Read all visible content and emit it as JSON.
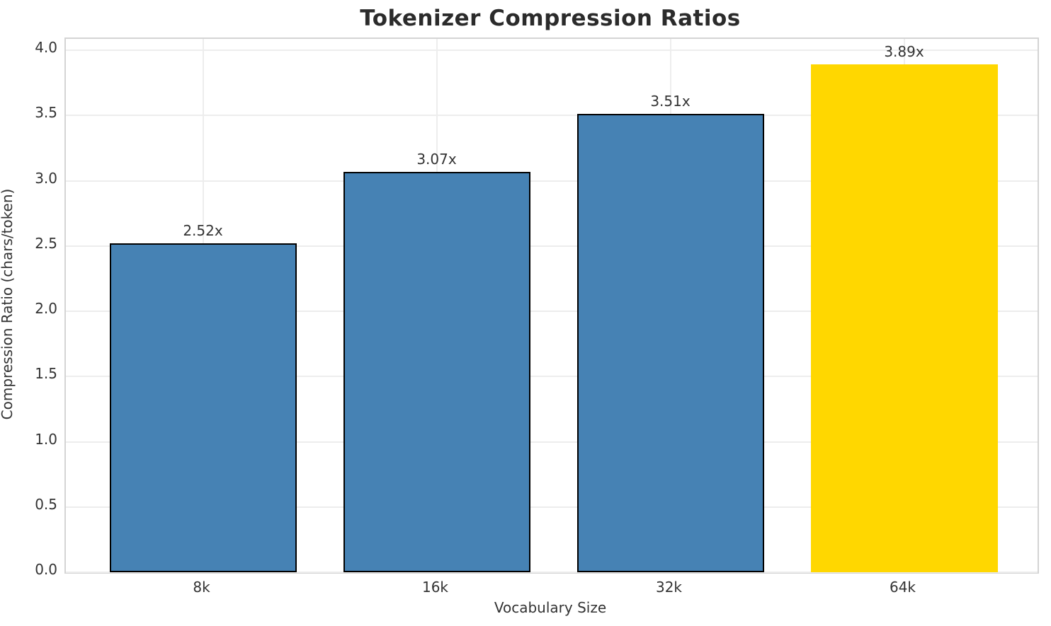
{
  "chart_data": {
    "type": "bar",
    "title": "Tokenizer Compression Ratios",
    "xlabel": "Vocabulary Size",
    "ylabel": "Compression Ratio (chars/token)",
    "categories": [
      "8k",
      "16k",
      "32k",
      "64k"
    ],
    "values": [
      2.52,
      3.07,
      3.51,
      3.89
    ],
    "bar_labels": [
      "2.52x",
      "3.07x",
      "3.51x",
      "3.89x"
    ],
    "bar_colors": [
      "#4682b4",
      "#4682b4",
      "#4682b4",
      "#ffd700"
    ],
    "bar_edge_colors": [
      "#000000",
      "#000000",
      "#000000",
      "none"
    ],
    "yticks": [
      "0.0",
      "0.5",
      "1.0",
      "1.5",
      "2.0",
      "2.5",
      "3.0",
      "3.5",
      "4.0"
    ],
    "ylim": [
      0,
      4.087
    ],
    "grid": "on",
    "grid_color": "#ededed",
    "spine_color": "#d4d4d4",
    "background_color": "#ffffff",
    "legend": "none"
  }
}
